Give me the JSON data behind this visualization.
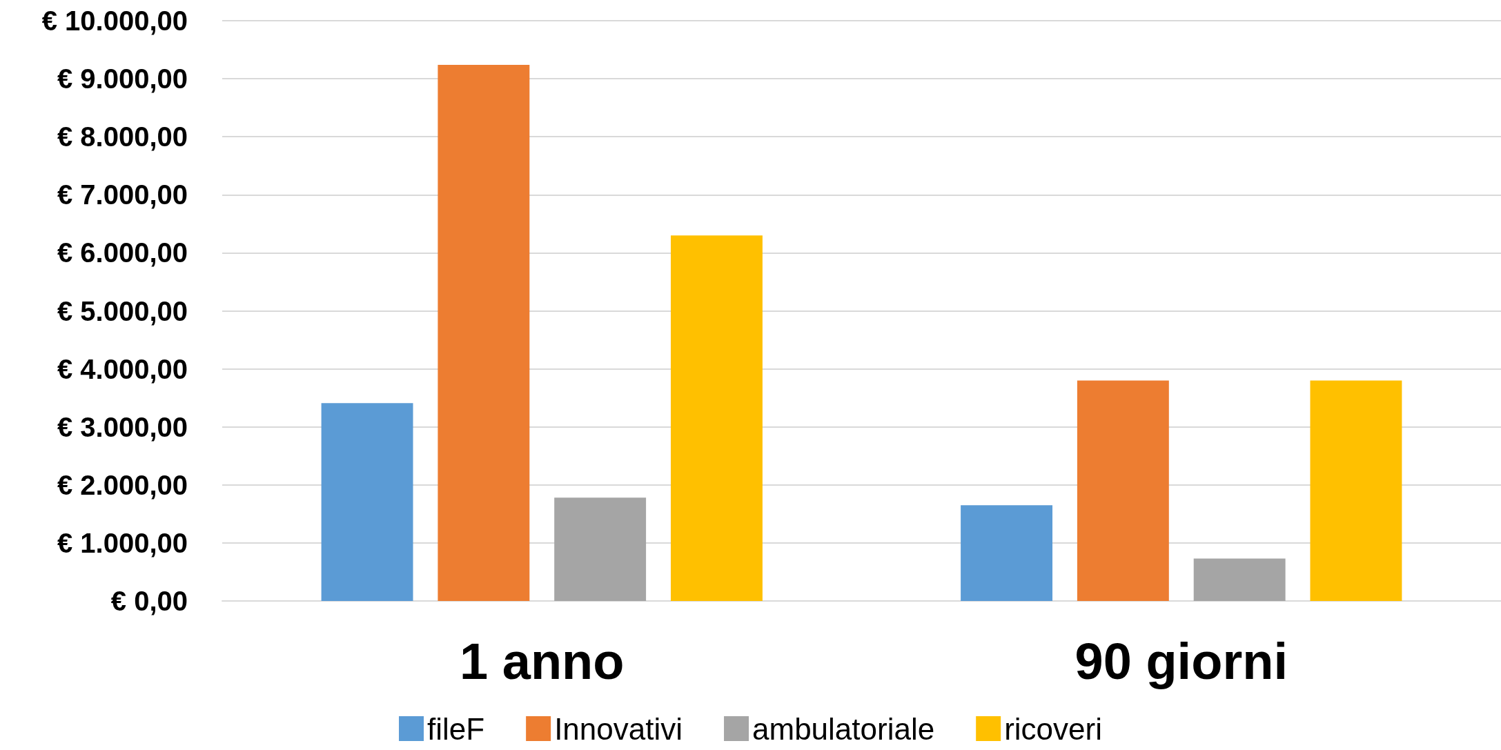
{
  "chart_data": {
    "type": "bar",
    "categories": [
      "1 anno",
      "90 giorni"
    ],
    "series": [
      {
        "name": "fileF",
        "color": "#5b9bd5",
        "values": [
          3410,
          1650
        ]
      },
      {
        "name": "Innovativi",
        "color": "#ed7d31",
        "values": [
          9240,
          3800
        ]
      },
      {
        "name": "ambulatoriale",
        "color": "#a5a5a5",
        "values": [
          1780,
          730
        ]
      },
      {
        "name": "ricoveri",
        "color": "#ffc000",
        "values": [
          6300,
          3800
        ]
      }
    ],
    "ylim": [
      0,
      10000
    ],
    "yticks": [
      {
        "value": 0,
        "label": "€ 0,00"
      },
      {
        "value": 1000,
        "label": "€ 1.000,00"
      },
      {
        "value": 2000,
        "label": "€ 2.000,00"
      },
      {
        "value": 3000,
        "label": "€ 3.000,00"
      },
      {
        "value": 4000,
        "label": "€ 4.000,00"
      },
      {
        "value": 5000,
        "label": "€ 5.000,00"
      },
      {
        "value": 6000,
        "label": "€ 6.000,00"
      },
      {
        "value": 7000,
        "label": "€ 7.000,00"
      },
      {
        "value": 8000,
        "label": "€ 8.000,00"
      },
      {
        "value": 9000,
        "label": "€ 9.000,00"
      },
      {
        "value": 10000,
        "label": "€ 10.000,00"
      }
    ],
    "grid": "y",
    "legend": "bottom"
  }
}
